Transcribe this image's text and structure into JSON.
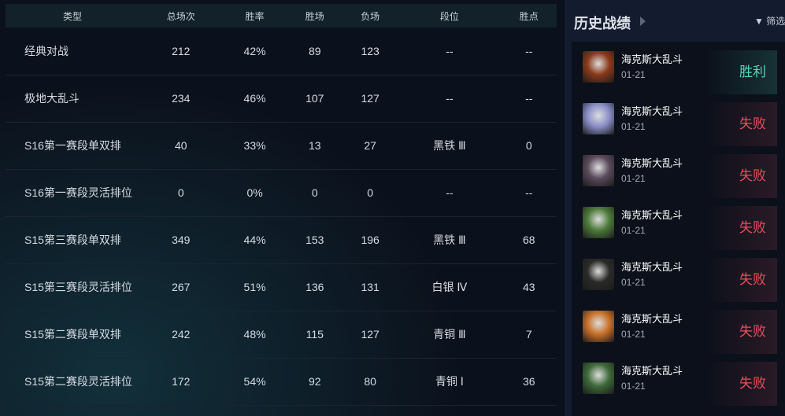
{
  "table": {
    "headers": [
      "类型",
      "总场次",
      "胜率",
      "胜场",
      "负场",
      "段位",
      "胜点"
    ],
    "rows": [
      [
        "经典对战",
        "212",
        "42%",
        "89",
        "123",
        "--",
        "--"
      ],
      [
        "极地大乱斗",
        "234",
        "46%",
        "107",
        "127",
        "--",
        "--"
      ],
      [
        "S16第一赛段单双排",
        "40",
        "33%",
        "13",
        "27",
        "黑铁 Ⅲ",
        "0"
      ],
      [
        "S16第一赛段灵活排位",
        "0",
        "0%",
        "0",
        "0",
        "--",
        "--"
      ],
      [
        "S15第三赛段单双排",
        "349",
        "44%",
        "153",
        "196",
        "黑铁 Ⅲ",
        "68"
      ],
      [
        "S15第三赛段灵活排位",
        "267",
        "51%",
        "136",
        "131",
        "白银 Ⅳ",
        "43"
      ],
      [
        "S15第二赛段单双排",
        "242",
        "48%",
        "115",
        "127",
        "青铜 Ⅲ",
        "7"
      ],
      [
        "S15第二赛段灵活排位",
        "172",
        "54%",
        "92",
        "80",
        "青铜 Ⅰ",
        "36"
      ]
    ]
  },
  "history": {
    "title": "历史战绩",
    "filter": "筛选",
    "colors": {
      "win": "#54d6b9",
      "lose": "#e94d5d"
    },
    "items": [
      {
        "mode": "海克斯大乱斗",
        "date": "01-21",
        "result": "胜利",
        "win": true,
        "avatar": "#8a3a1c"
      },
      {
        "mode": "海克斯大乱斗",
        "date": "01-21",
        "result": "失败",
        "win": false,
        "avatar": "#8a8fc8"
      },
      {
        "mode": "海克斯大乱斗",
        "date": "01-21",
        "result": "失败",
        "win": false,
        "avatar": "#5a4a5a"
      },
      {
        "mode": "海克斯大乱斗",
        "date": "01-21",
        "result": "失败",
        "win": false,
        "avatar": "#4d7a3a"
      },
      {
        "mode": "海克斯大乱斗",
        "date": "01-21",
        "result": "失败",
        "win": false,
        "avatar": "#2a2a28"
      },
      {
        "mode": "海克斯大乱斗",
        "date": "01-21",
        "result": "失败",
        "win": false,
        "avatar": "#c8702a"
      },
      {
        "mode": "海克斯大乱斗",
        "date": "01-21",
        "result": "失败",
        "win": false,
        "avatar": "#3f6a3a"
      }
    ]
  }
}
